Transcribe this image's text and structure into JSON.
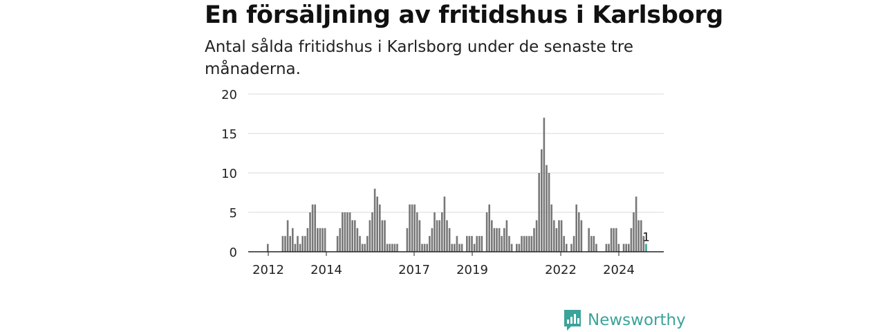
{
  "chart_data": {
    "type": "bar",
    "title": "En försäljning av fritidshus i Karlsborg",
    "subtitle": "Antal sålda fritidshus i Karlsborg under de senaste tre månaderna.",
    "ylim": [
      0,
      20
    ],
    "yticks": [
      "0",
      "5",
      "10",
      "15",
      "20"
    ],
    "xticks": [
      "2012",
      "2014",
      "2017",
      "2019",
      "2022",
      "2024"
    ],
    "values": [
      1,
      0,
      0,
      0,
      0,
      0,
      2,
      2,
      4,
      2,
      3,
      1,
      2,
      1,
      2,
      2,
      3,
      5,
      6,
      6,
      3,
      3,
      3,
      3,
      0,
      0,
      0,
      0,
      2,
      3,
      5,
      5,
      5,
      5,
      4,
      4,
      3,
      2,
      1,
      1,
      2,
      4,
      5,
      8,
      7,
      6,
      4,
      4,
      1,
      1,
      1,
      1,
      1,
      0,
      0,
      0,
      3,
      6,
      6,
      6,
      5,
      4,
      1,
      1,
      1,
      2,
      3,
      5,
      4,
      4,
      5,
      7,
      4,
      3,
      1,
      1,
      2,
      1,
      1,
      0,
      2,
      2,
      2,
      1,
      2,
      2,
      2,
      0,
      5,
      6,
      4,
      3,
      3,
      3,
      2,
      3,
      4,
      2,
      1,
      0,
      1,
      1,
      2,
      2,
      2,
      2,
      2,
      3,
      4,
      10,
      13,
      17,
      11,
      10,
      6,
      4,
      3,
      4,
      4,
      2,
      1,
      0,
      1,
      2,
      6,
      5,
      4,
      0,
      0,
      3,
      2,
      2,
      1,
      0,
      0,
      0,
      1,
      1,
      3,
      3,
      3,
      1,
      0,
      1,
      1,
      1,
      3,
      5,
      7,
      4,
      4,
      2,
      1
    ],
    "highlight_index": 152,
    "highlight_label": "1",
    "colors": {
      "bar": "#777777",
      "highlight": "#3aa39a",
      "grid": "#d9d9d9",
      "axis": "#222222"
    },
    "grid": true,
    "legend": "none"
  },
  "brand": {
    "name": "Newsworthy",
    "color": "#3aa39a",
    "icon": "newsworthy-logo-icon"
  }
}
